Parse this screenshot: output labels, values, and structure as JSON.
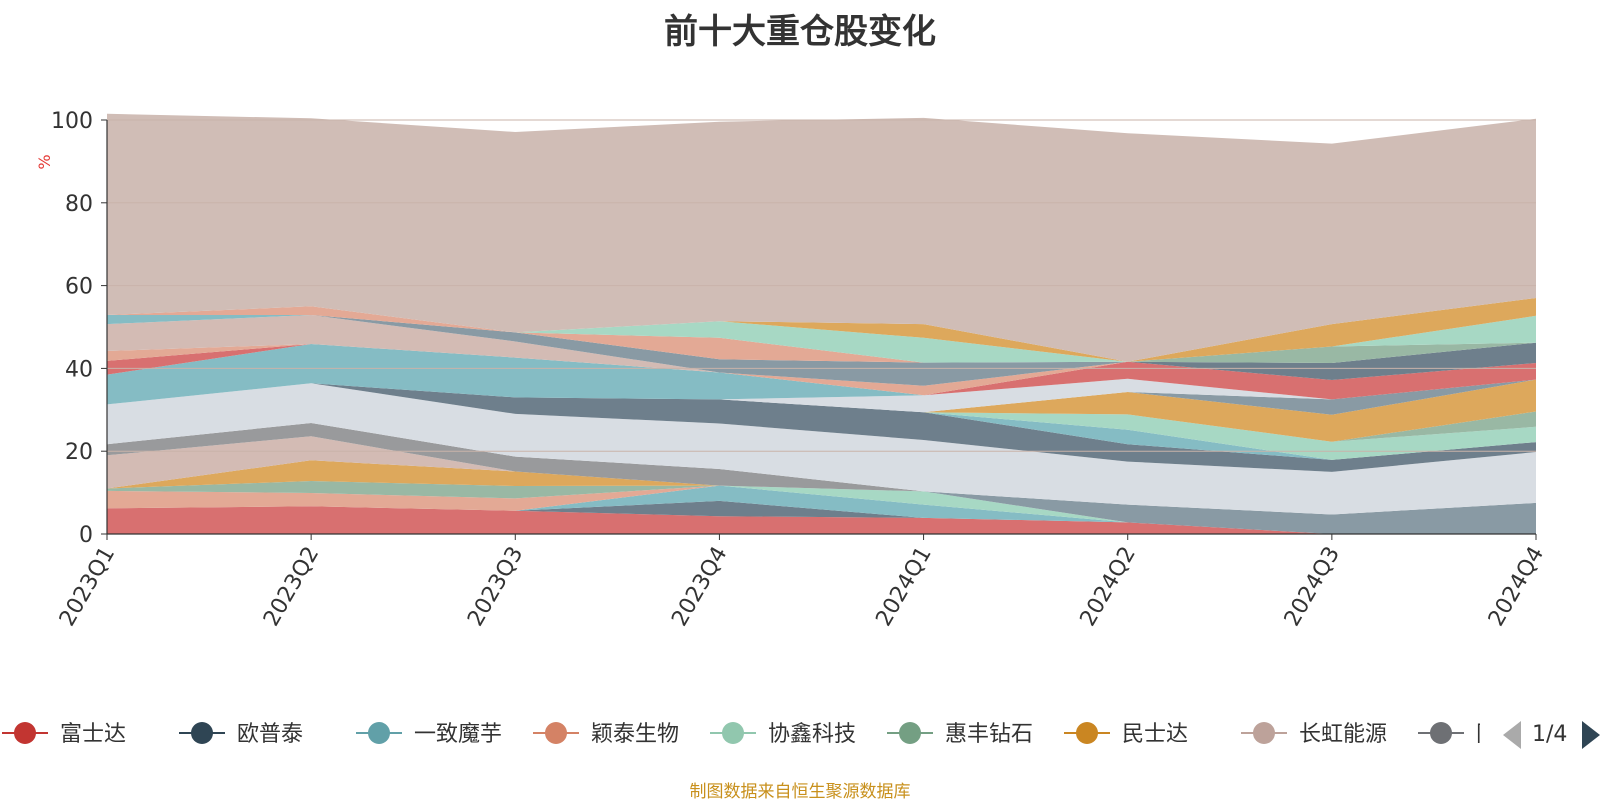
{
  "title": "前十大重仓股变化",
  "source_note": "制图数据来自恒生聚源数据库",
  "y_unit": "%",
  "legend_page": "1/4",
  "colors": {
    "unit": "#e53935",
    "axis": "#333333",
    "grid": "#c9b3aa",
    "pager_active": "#2f4554",
    "pager_inactive": "#aaaaaa"
  },
  "legend": [
    {
      "label": "富士达",
      "color": "#c23531"
    },
    {
      "label": "欧普泰",
      "color": "#2f4554"
    },
    {
      "label": "一致魔芋",
      "color": "#61a0a8"
    },
    {
      "label": "颖泰生物",
      "color": "#d48265"
    },
    {
      "label": "协鑫科技",
      "color": "#91c7ae"
    },
    {
      "label": "惠丰钻石",
      "color": "#749f83"
    },
    {
      "label": "民士达",
      "color": "#ca8622"
    },
    {
      "label": "长虹能源",
      "color": "#bda29a"
    },
    {
      "label": "同享科技",
      "color": "#6e7074"
    }
  ],
  "chart_data": {
    "type": "area",
    "stacked": true,
    "x": [
      "2023Q1",
      "2023Q2",
      "2023Q3",
      "2023Q4",
      "2024Q1",
      "2024Q2",
      "2024Q3",
      "2024Q4"
    ],
    "y_ticks": [
      "0",
      "20",
      "40",
      "60",
      "80",
      "100"
    ],
    "ylim": [
      0,
      100
    ],
    "grid": true,
    "series": [
      {
        "color": "#d87070",
        "values": [
          6.2,
          6.7,
          5.6,
          4.3,
          3.9,
          2.8,
          0,
          0
        ]
      },
      {
        "color": "#6e7f8c",
        "values": [
          0,
          0,
          0,
          3.7,
          0,
          0,
          0,
          0
        ]
      },
      {
        "color": "#85bcc4",
        "values": [
          0,
          0,
          0,
          3.7,
          3.2,
          0,
          0,
          0
        ]
      },
      {
        "color": "#e3a995",
        "values": [
          4.2,
          3.2,
          3.0,
          0,
          0,
          0,
          0,
          0
        ]
      },
      {
        "color": "#a7d8c4",
        "values": [
          0,
          0,
          0,
          0,
          3.2,
          0,
          0,
          0
        ]
      },
      {
        "color": "#99b8a4",
        "values": [
          0.6,
          2.9,
          3.0,
          0,
          0,
          0,
          0,
          0
        ]
      },
      {
        "color": "#dda85c",
        "values": [
          0,
          5.0,
          3.5,
          0,
          0,
          0,
          0,
          0
        ]
      },
      {
        "color": "#d3bbb4",
        "values": [
          8.0,
          5.8,
          0,
          0,
          0,
          0,
          0,
          0
        ]
      },
      {
        "color": "#999a9c",
        "values": [
          2.7,
          3.2,
          3.6,
          4.0,
          0,
          0,
          0,
          0
        ]
      },
      {
        "color": "#899aa4",
        "values": [
          0,
          0,
          0,
          0,
          0,
          4.3,
          4.7,
          7.5
        ]
      },
      {
        "color": "#d8dde3",
        "values": [
          9.6,
          9.6,
          10.3,
          11.0,
          12.4,
          10.4,
          10.3,
          12.3
        ]
      },
      {
        "color": "#6e7f8c",
        "values": [
          0,
          0,
          4.0,
          5.8,
          6.7,
          4.2,
          2.9,
          2.4
        ]
      },
      {
        "color": "#85bcc4",
        "values": [
          0,
          0,
          0,
          0,
          0,
          3.5,
          0,
          0
        ]
      },
      {
        "color": "#a7d8c4",
        "values": [
          0,
          0,
          0,
          0,
          0,
          3.7,
          4.4,
          3.7
        ]
      },
      {
        "color": "#99b8a4",
        "values": [
          0,
          0,
          0,
          0,
          0,
          0,
          0,
          3.7
        ]
      },
      {
        "color": "#dda85c",
        "values": [
          0,
          0,
          0,
          0,
          0,
          5.4,
          6.5,
          7.7
        ]
      },
      {
        "color": "#899aa4",
        "values": [
          0,
          0,
          0,
          0,
          0,
          0,
          3.7,
          0
        ]
      },
      {
        "color": "#d8dde3",
        "values": [
          0,
          0,
          0,
          0,
          4.1,
          3.2,
          0,
          0
        ]
      },
      {
        "color": "#85bcc4",
        "values": [
          7.2,
          9.5,
          9.6,
          6.5,
          0,
          0,
          0,
          0
        ]
      },
      {
        "color": "#d87070",
        "values": [
          3.3,
          0,
          0,
          0,
          0,
          4.1,
          4.7,
          4.0
        ]
      },
      {
        "color": "#6e7f8c",
        "values": [
          0,
          0,
          0,
          0,
          0,
          0,
          4.1,
          4.9
        ]
      },
      {
        "color": "#e3a995",
        "values": [
          2.4,
          0,
          0,
          0,
          2.3,
          0,
          0,
          0
        ]
      },
      {
        "color": "#d3bbb4",
        "values": [
          6.5,
          7.0,
          3.9,
          0,
          0,
          0,
          0,
          0
        ]
      },
      {
        "color": "#899aa4",
        "values": [
          0,
          0,
          2.2,
          3.2,
          5.6,
          0,
          0,
          0
        ]
      },
      {
        "color": "#e3a995",
        "values": [
          0,
          0,
          0,
          5.2,
          0,
          0,
          0,
          0
        ]
      },
      {
        "color": "#99b8a4",
        "values": [
          0,
          0,
          0,
          0,
          0,
          0,
          4.0,
          0
        ]
      },
      {
        "color": "#a7d8c4",
        "values": [
          0,
          0,
          0,
          4.0,
          6.0,
          0,
          0,
          6.5
        ]
      },
      {
        "color": "#dda85c",
        "values": [
          0,
          0,
          0,
          0,
          3.3,
          0,
          5.4,
          4.3
        ]
      },
      {
        "color": "#85bcc4",
        "values": [
          2.2,
          0,
          0,
          0,
          0,
          0,
          0,
          0
        ]
      },
      {
        "color": "#e3a995",
        "values": [
          0,
          2.1,
          0,
          0,
          0,
          0,
          0,
          0
        ]
      },
      {
        "color": "#d0bdb6",
        "values": [
          48.6,
          45.4,
          48.4,
          48.2,
          49.8,
          55.2,
          43.6,
          43.3
        ]
      }
    ]
  }
}
